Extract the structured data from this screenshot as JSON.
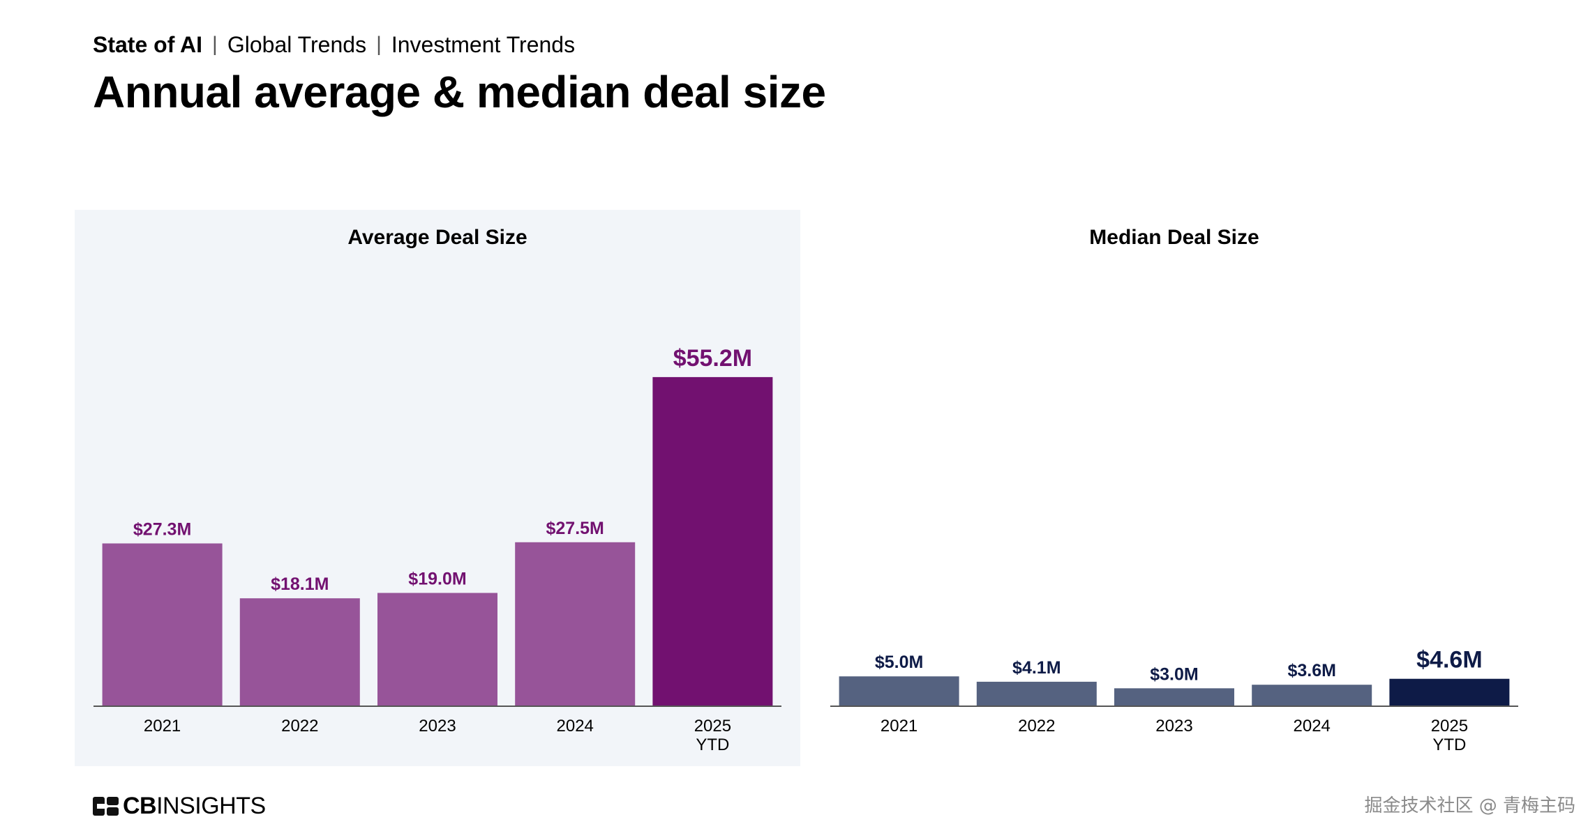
{
  "header": {
    "breadcrumb": [
      {
        "label": "State of AI",
        "strong": true
      },
      {
        "label": "Global Trends",
        "strong": false
      },
      {
        "label": "Investment Trends",
        "strong": false
      }
    ],
    "separator": "|",
    "title": "Annual average & median deal size"
  },
  "colors": {
    "avg_bar": "#975499",
    "avg_bar_highlight": "#721170",
    "avg_label": "#721170",
    "med_bar": "#556280",
    "med_bar_highlight": "#0e1b47",
    "med_label": "#0e1b47",
    "axis": "#555555",
    "tick_text": "#000000"
  },
  "chart_data": [
    {
      "type": "bar",
      "title": "Average Deal Size",
      "categories": [
        "2021",
        "2022",
        "2023",
        "2024",
        "2025 YTD"
      ],
      "values": [
        27.3,
        18.1,
        19.0,
        27.5,
        55.2
      ],
      "value_labels": [
        "$27.3M",
        "$18.1M",
        "$19.0M",
        "$27.5M",
        "$55.2M"
      ],
      "highlight_index": 4,
      "ylim": [
        0,
        58
      ],
      "grid": false,
      "legend": "none"
    },
    {
      "type": "bar",
      "title": "Median Deal Size",
      "categories": [
        "2021",
        "2022",
        "2023",
        "2024",
        "2025 YTD"
      ],
      "values": [
        5.0,
        4.1,
        3.0,
        3.6,
        4.6
      ],
      "value_labels": [
        "$5.0M",
        "$4.1M",
        "$3.0M",
        "$3.6M",
        "$4.6M"
      ],
      "highlight_index": 4,
      "ylim": [
        0,
        58
      ],
      "grid": false,
      "legend": "none"
    }
  ],
  "footer": {
    "brand_bold": "CB",
    "brand_light": "INSIGHTS",
    "watermark": "掘金技术社区 @ 青梅主码"
  }
}
